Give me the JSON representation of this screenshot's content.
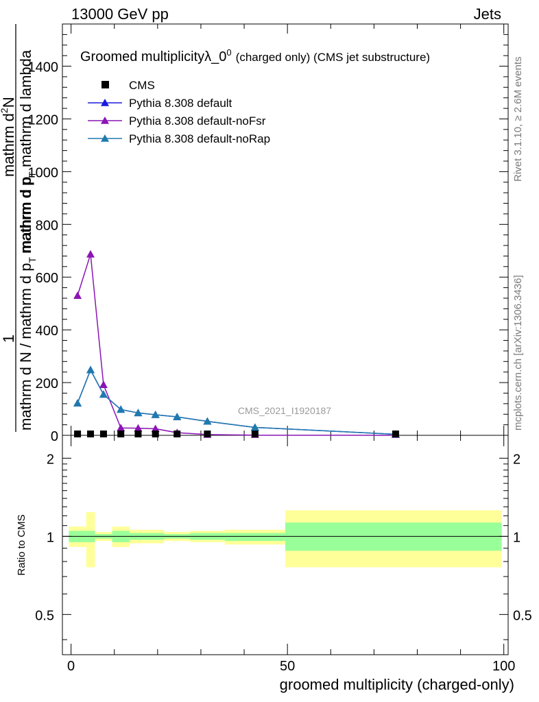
{
  "header": {
    "left": "13000 GeV pp",
    "right": "Jets"
  },
  "legend_title": {
    "main": "Groomed multiplicity",
    "lambda": "λ_0",
    "sup": "0",
    "note": "(charged only) (CMS jet substructure)"
  },
  "ylabel": {
    "one": "1",
    "num_a": "mathrm d",
    "num_b": "2",
    "num_c": "N",
    "den_a": "mathrm d N / mathrm d p",
    "den_sub": "T",
    "den_b": "mathrm d p",
    "den_c": "mathrm d p",
    "den_d": "mathrm d lambda",
    "top_frac": "mathrm d",
    "top_den": "mathrm d p",
    "top_sub": "T",
    "top_tail": " mathrm d lambda",
    "lower": "mathrm d N / mathrm d p",
    "lower_sub": "T",
    "lower_tail": " mathrm d p",
    "lower_sub2": "T",
    "lower_tail2": " mathrm d lambda"
  },
  "side": {
    "rivet": "Rivet 3.1.10, ≥ 2.6M events",
    "mcplots": "mcplots.cern.ch [arXiv:1306.3436]"
  },
  "watermark": "CMS_2021_I1920187",
  "ratio_label": "Ratio to CMS",
  "xlabel": "groomed multiplicity (charged-only)",
  "chart_data": {
    "type": "line",
    "xlim": [
      -2,
      101
    ],
    "ylim_main": [
      0,
      1560
    ],
    "ylim_ratio": [
      0.35,
      2.45
    ],
    "x_ticks": [
      0,
      50,
      100
    ],
    "y_ticks_main": [
      0,
      200,
      400,
      600,
      800,
      1000,
      1200,
      1400
    ],
    "y_ticks_main_labels": [
      "0",
      "200",
      "400",
      "600",
      "800",
      "1000",
      "1200",
      "1400"
    ],
    "y_ticks_ratio": [
      0.5,
      1,
      2
    ],
    "y_ticks_ratio_labels": [
      "0.5",
      "1",
      "2"
    ],
    "series": [
      {
        "name": "CMS",
        "color": "#000000",
        "marker": "square",
        "x": [
          1.5,
          4.5,
          7.5,
          11.5,
          15.5,
          19.5,
          24.5,
          31.5,
          42.5,
          75.0
        ],
        "y": [
          1,
          1,
          1,
          1,
          1,
          1,
          1,
          1,
          1,
          1
        ]
      },
      {
        "name": "Pythia 8.308 default",
        "color": "#1a1adb",
        "marker": "triangle",
        "x": [
          1.5,
          4.5,
          7.5,
          11.5,
          15.5,
          19.5,
          24.5,
          31.5,
          42.5,
          75.0
        ],
        "y": [
          122,
          248,
          155,
          98,
          85,
          78,
          70,
          53,
          30,
          4
        ]
      },
      {
        "name": "Pythia 8.308 default-noFsr",
        "color": "#8a14b4",
        "marker": "triangle",
        "x": [
          1.5,
          4.5,
          7.5,
          11.5,
          15.5,
          19.5,
          24.5,
          31.5,
          42.5,
          75.0
        ],
        "y": [
          530,
          687,
          192,
          28,
          27,
          25,
          10,
          3,
          0.5,
          0
        ]
      },
      {
        "name": "Pythia 8.308 default-noRap",
        "color": "#1f7aad",
        "marker": "triangle",
        "x": [
          1.5,
          4.5,
          7.5,
          11.5,
          15.5,
          19.5,
          24.5,
          31.5,
          42.5,
          75.0
        ],
        "y": [
          122,
          248,
          155,
          98,
          85,
          78,
          70,
          53,
          30,
          4
        ]
      }
    ],
    "ratio_bands": {
      "yellow_color": "#ffff99",
      "green_color": "#99ff99",
      "bins": [
        {
          "x0": -0.5,
          "x1": 3.5,
          "yellow": [
            0.91,
            1.09
          ],
          "green": [
            0.95,
            1.05
          ]
        },
        {
          "x0": 3.5,
          "x1": 5.5,
          "yellow": [
            0.76,
            1.24
          ],
          "green": [
            0.95,
            1.05
          ]
        },
        {
          "x0": 5.5,
          "x1": 9.5,
          "yellow": [
            0.96,
            1.04
          ],
          "green": [
            0.98,
            1.02
          ]
        },
        {
          "x0": 9.5,
          "x1": 13.5,
          "yellow": [
            0.91,
            1.09
          ],
          "green": [
            0.95,
            1.05
          ]
        },
        {
          "x0": 13.5,
          "x1": 21.5,
          "yellow": [
            0.94,
            1.06
          ],
          "green": [
            0.97,
            1.03
          ]
        },
        {
          "x0": 21.5,
          "x1": 27.5,
          "yellow": [
            0.96,
            1.04
          ],
          "green": [
            0.98,
            1.02
          ]
        },
        {
          "x0": 27.5,
          "x1": 35.5,
          "yellow": [
            0.95,
            1.05
          ],
          "green": [
            0.97,
            1.03
          ]
        },
        {
          "x0": 35.5,
          "x1": 49.5,
          "yellow": [
            0.93,
            1.06
          ],
          "green": [
            0.96,
            1.03
          ]
        },
        {
          "x0": 49.5,
          "x1": 99.5,
          "yellow": [
            0.76,
            1.26
          ],
          "green": [
            0.88,
            1.13
          ]
        }
      ]
    }
  }
}
